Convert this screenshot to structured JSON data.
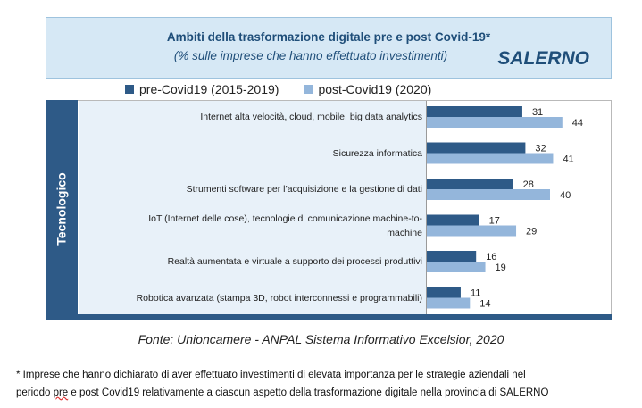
{
  "header": {
    "title": "Ambiti della trasformazione digitale pre e post Covid-19*",
    "subtitle": "(% sulle imprese che hanno effettuato investimenti)",
    "city": "SALERNO"
  },
  "side_label": "Tecnologico",
  "colors": {
    "pre": "#2e5a87",
    "post": "#94b6db",
    "band": "#2e5a87",
    "header_bg": "#d6e8f5",
    "label_bg": "#e8f1f9"
  },
  "chart_data": {
    "type": "bar",
    "orientation": "horizontal",
    "categories": [
      "Internet alta velocità, cloud, mobile, big data analytics",
      "Sicurezza informatica",
      "Strumenti software  per l’acquisizione e la gestione di dati",
      "IoT (Internet delle cose), tecnologie di comunicazione machine-to-machine",
      "Realtà aumentata e virtuale a supporto dei processi produttivi",
      "Robotica avanzata (stampa 3D, robot interconnessi e programmabili)"
    ],
    "series": [
      {
        "name": "pre-Covid19 (2015-2019)",
        "values": [
          31,
          32,
          28,
          17,
          16,
          11
        ]
      },
      {
        "name": "post-Covid19 (2020)",
        "values": [
          44,
          41,
          40,
          29,
          19,
          14
        ]
      }
    ],
    "legend_position": "top",
    "xlim": [
      0,
      50
    ]
  },
  "category_lines": [
    [
      "Internet alta velocità, cloud, mobile, big data analytics"
    ],
    [
      "Sicurezza informatica"
    ],
    [
      "Strumenti software  per l’acquisizione e la gestione di dati"
    ],
    [
      "IoT (Internet delle cose), tecnologie di comunicazione machine-to-",
      "machine"
    ],
    [
      "Realtà aumentata e virtuale a supporto dei processi produttivi"
    ],
    [
      "Robotica avanzata (stampa 3D, robot interconnessi e programmabili)"
    ]
  ],
  "source": "Fonte: Unioncamere - ANPAL Sistema Informativo Excelsior, 2020",
  "note": {
    "line1": "* Imprese che hanno dichiarato di aver effettuato investimenti di elevata importanza per le strategie aziendali nel",
    "line2_a": "periodo ",
    "line2_pre": "pre",
    "line2_b": " e post Covid19 relativamente a ciascun aspetto della trasformazione digitale nella provincia di SALERNO"
  }
}
